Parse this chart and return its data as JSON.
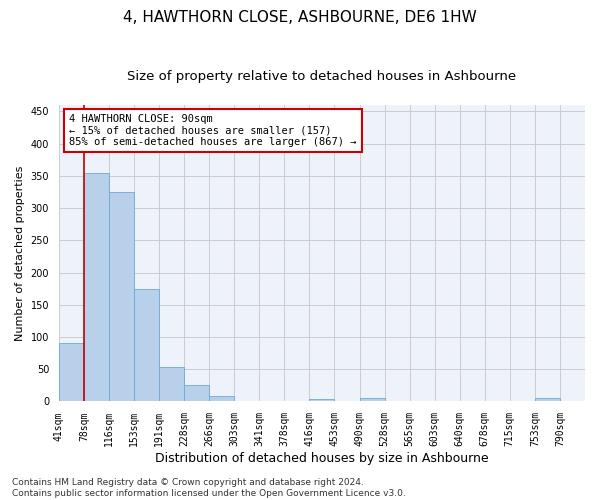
{
  "title": "4, HAWTHORN CLOSE, ASHBOURNE, DE6 1HW",
  "subtitle": "Size of property relative to detached houses in Ashbourne",
  "xlabel": "Distribution of detached houses by size in Ashbourne",
  "ylabel": "Number of detached properties",
  "bar_color": "#b8d0ea",
  "bar_edge_color": "#6aaad4",
  "grid_color": "#cccccc",
  "background_color": "#eef2fb",
  "bin_labels": [
    "41sqm",
    "78sqm",
    "116sqm",
    "153sqm",
    "191sqm",
    "228sqm",
    "266sqm",
    "303sqm",
    "341sqm",
    "378sqm",
    "416sqm",
    "453sqm",
    "490sqm",
    "528sqm",
    "565sqm",
    "603sqm",
    "640sqm",
    "678sqm",
    "715sqm",
    "753sqm",
    "790sqm"
  ],
  "bar_values": [
    91,
    355,
    325,
    175,
    53,
    25,
    8,
    0,
    0,
    0,
    4,
    0,
    5,
    0,
    0,
    0,
    0,
    0,
    0,
    5,
    0
  ],
  "ylim": [
    0,
    460
  ],
  "yticks": [
    0,
    50,
    100,
    150,
    200,
    250,
    300,
    350,
    400,
    450
  ],
  "vline_x": 1,
  "vline_color": "#cc0000",
  "annotation_text": "4 HAWTHORN CLOSE: 90sqm\n← 15% of detached houses are smaller (157)\n85% of semi-detached houses are larger (867) →",
  "annotation_box_color": "#ffffff",
  "annotation_box_edge_color": "#cc0000",
  "footer_text": "Contains HM Land Registry data © Crown copyright and database right 2024.\nContains public sector information licensed under the Open Government Licence v3.0.",
  "title_fontsize": 11,
  "subtitle_fontsize": 9.5,
  "xlabel_fontsize": 9,
  "ylabel_fontsize": 8,
  "tick_fontsize": 7,
  "annotation_fontsize": 7.5,
  "footer_fontsize": 6.5
}
